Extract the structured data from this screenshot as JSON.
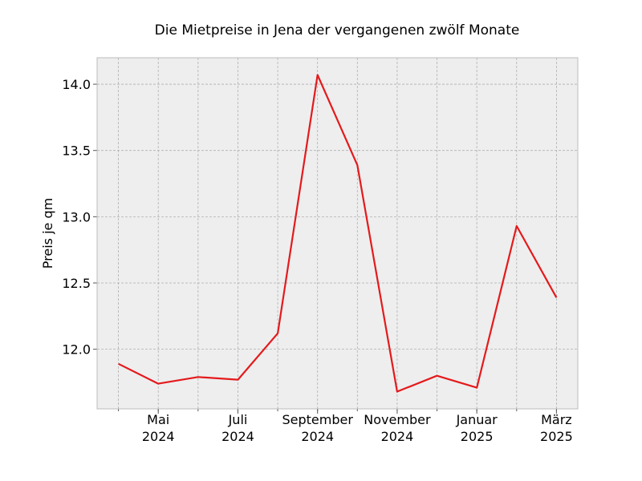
{
  "chart_data": {
    "type": "line",
    "title": "Die Mietpreise in Jena der vergangenen zwölf Monate",
    "xlabel": "",
    "ylabel": "Preis je qm",
    "x": [
      "2024-04",
      "2024-05",
      "2024-06",
      "2024-07",
      "2024-08",
      "2024-09",
      "2024-10",
      "2024-11",
      "2024-12",
      "2025-01",
      "2025-02",
      "2025-03"
    ],
    "series": [
      {
        "values": [
          11.89,
          11.74,
          11.79,
          11.77,
          12.12,
          14.07,
          13.39,
          11.68,
          11.8,
          11.71,
          12.93,
          12.39
        ],
        "color": "#e41a1c"
      }
    ],
    "ylim": [
      11.55,
      14.2
    ],
    "yticks": [
      12.0,
      12.5,
      13.0,
      13.5,
      14.0
    ],
    "ytick_labels": [
      "12.0",
      "12.5",
      "13.0",
      "13.5",
      "14.0"
    ],
    "xticks": [
      {
        "x": "2024-05",
        "line1": "Mai",
        "line2": "2024"
      },
      {
        "x": "2024-07",
        "line1": "Juli",
        "line2": "2024"
      },
      {
        "x": "2024-09",
        "line1": "September",
        "line2": "2024"
      },
      {
        "x": "2024-11",
        "line1": "November",
        "line2": "2024"
      },
      {
        "x": "2025-01",
        "line1": "Januar",
        "line2": "2025"
      },
      {
        "x": "2025-03",
        "line1": "März",
        "line2": "2025"
      }
    ],
    "grid": true,
    "background": "#eeeeee"
  }
}
